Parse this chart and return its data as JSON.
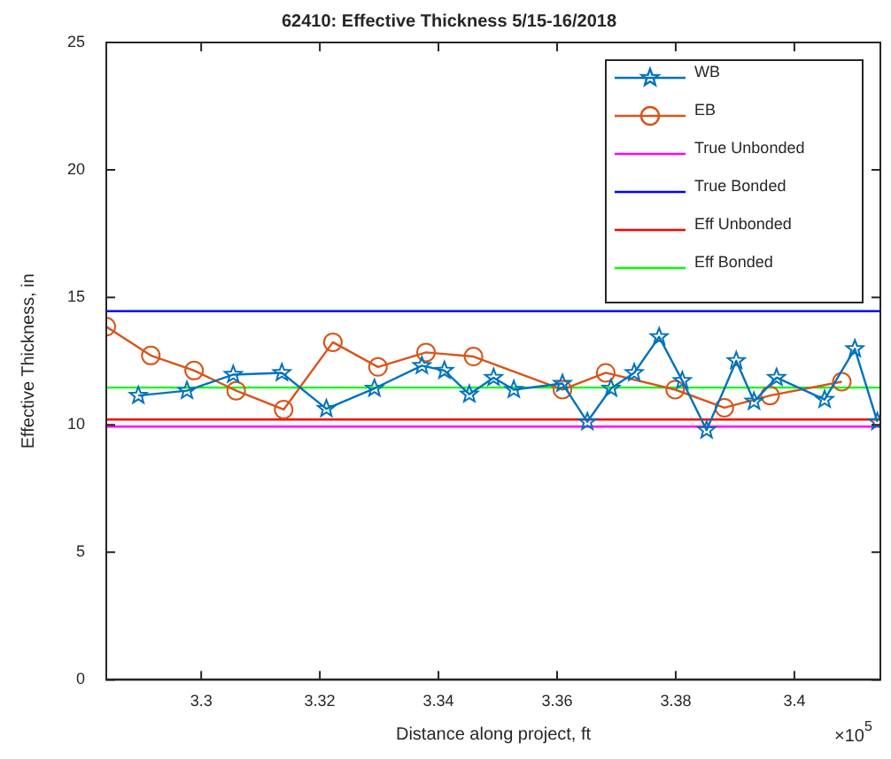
{
  "chart_data": {
    "type": "line",
    "title": "62410: Effective Thickness 5/15-16/2018",
    "xlabel": "Distance along project, ft",
    "ylabel": "Effective Thickness, in",
    "annotations": [
      "×10$^{5}$"
    ],
    "xlim": [
      3.284,
      3.4145
    ],
    "xticks": [
      3.3,
      3.32,
      3.34,
      3.36,
      3.38,
      3.4
    ],
    "ylim": [
      0,
      25
    ],
    "yticks": [
      0,
      5,
      10,
      15,
      20,
      25
    ],
    "grid": false,
    "legend": "top right",
    "series": [
      {
        "name": "WB",
        "color": "#0072bd",
        "marker": "star",
        "x": [
          3.2894,
          3.2976,
          3.3054,
          3.3136,
          3.3211,
          3.3292,
          3.3372,
          3.341,
          3.3452,
          3.3493,
          3.3527,
          3.3609,
          3.3651,
          3.3691,
          3.373,
          3.3772,
          3.3811,
          3.3852,
          3.3902,
          3.3932,
          3.397,
          3.4051,
          3.4102,
          3.414
        ],
        "values": [
          11.15,
          11.34,
          11.97,
          12.04,
          10.63,
          11.43,
          12.32,
          12.13,
          11.2,
          11.85,
          11.38,
          11.62,
          10.12,
          11.43,
          12.04,
          13.45,
          11.73,
          9.79,
          12.51,
          10.92,
          11.85,
          10.99,
          12.98,
          10.12
        ]
      },
      {
        "name": "EB",
        "color": "#d95319",
        "marker": "circle",
        "x": [
          3.284,
          3.2915,
          3.2988,
          3.3059,
          3.3139,
          3.3222,
          3.3298,
          3.3379,
          3.3459,
          3.3609,
          3.3682,
          3.3799,
          3.3882,
          3.3959,
          3.408
        ],
        "values": [
          13.85,
          12.72,
          12.13,
          11.34,
          10.6,
          13.24,
          12.27,
          12.84,
          12.68,
          11.38,
          12.04,
          11.38,
          10.67,
          11.15,
          11.69
        ]
      },
      {
        "name": "True Unbonded",
        "color": "#ff00ff",
        "marker": "none",
        "x": [
          3.284,
          3.4145
        ],
        "values": [
          9.93,
          9.93
        ]
      },
      {
        "name": "True Bonded",
        "color": "#0000ff",
        "marker": "none",
        "x": [
          3.284,
          3.4145
        ],
        "values": [
          14.46,
          14.46
        ]
      },
      {
        "name": "Eff Unbonded",
        "color": "#ff0000",
        "marker": "none",
        "x": [
          3.284,
          3.4145
        ],
        "values": [
          10.21,
          10.21
        ]
      },
      {
        "name": "Eff Bonded",
        "color": "#00ff00",
        "marker": "none",
        "x": [
          3.284,
          3.4145
        ],
        "values": [
          11.46,
          11.46
        ]
      }
    ]
  }
}
